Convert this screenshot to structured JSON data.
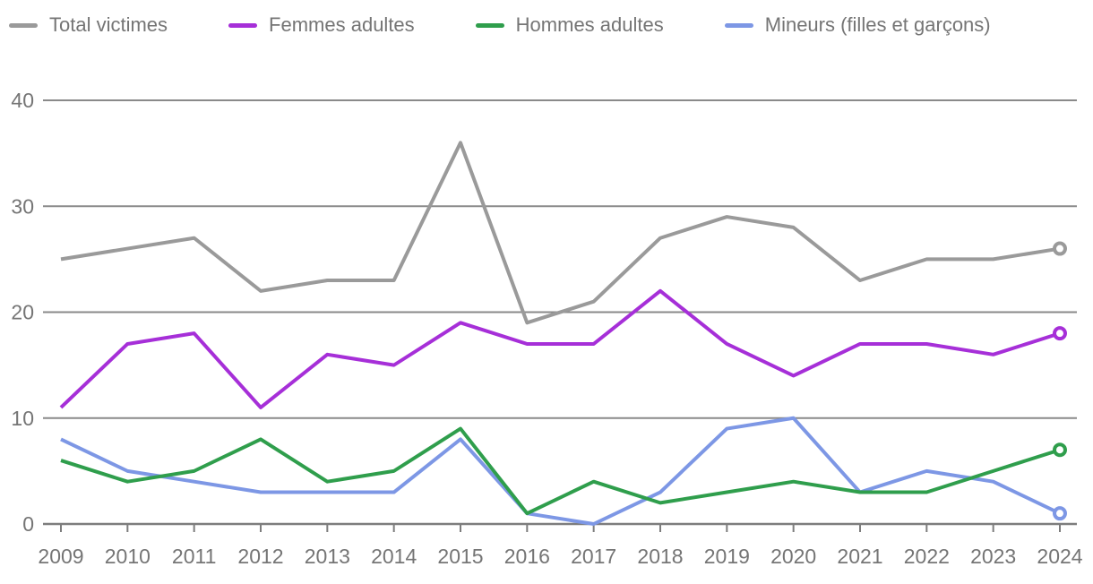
{
  "chart_data": {
    "type": "line",
    "title": "",
    "xlabel": "",
    "ylabel": "",
    "x": [
      "2009",
      "2010",
      "2011",
      "2012",
      "2013",
      "2014",
      "2015",
      "2016",
      "2017",
      "2018",
      "2019",
      "2020",
      "2021",
      "2022",
      "2023",
      "2024"
    ],
    "ylim": [
      0,
      40
    ],
    "yticks": [
      0,
      10,
      20,
      30,
      40
    ],
    "grid": "horizontal",
    "legend_position": "top",
    "last_point_marker": "open-circle",
    "series": [
      {
        "name": "Total victimes",
        "color": "#9a9a9a",
        "values": [
          25,
          26,
          27,
          22,
          23,
          23,
          36,
          19,
          21,
          27,
          29,
          28,
          23,
          25,
          25,
          26
        ]
      },
      {
        "name": "Femmes adultes",
        "color": "#a62fd8",
        "values": [
          11,
          17,
          18,
          11,
          16,
          15,
          19,
          17,
          17,
          22,
          17,
          14,
          17,
          17,
          16,
          18
        ]
      },
      {
        "name": "Hommes adultes",
        "color": "#2f9e4c",
        "values": [
          6,
          4,
          5,
          8,
          4,
          5,
          9,
          1,
          4,
          2,
          3,
          4,
          3,
          3,
          5,
          7
        ]
      },
      {
        "name": "Mineurs (filles et garçons)",
        "color": "#7d97e5",
        "values": [
          8,
          5,
          4,
          3,
          3,
          3,
          8,
          1,
          0,
          3,
          9,
          10,
          3,
          5,
          4,
          1
        ]
      }
    ],
    "colors": {
      "gridline": "#8a8a8a",
      "axis": "#7d7d7d",
      "tick_label": "#757575",
      "legend_label": "#757575",
      "background": "#ffffff"
    }
  }
}
